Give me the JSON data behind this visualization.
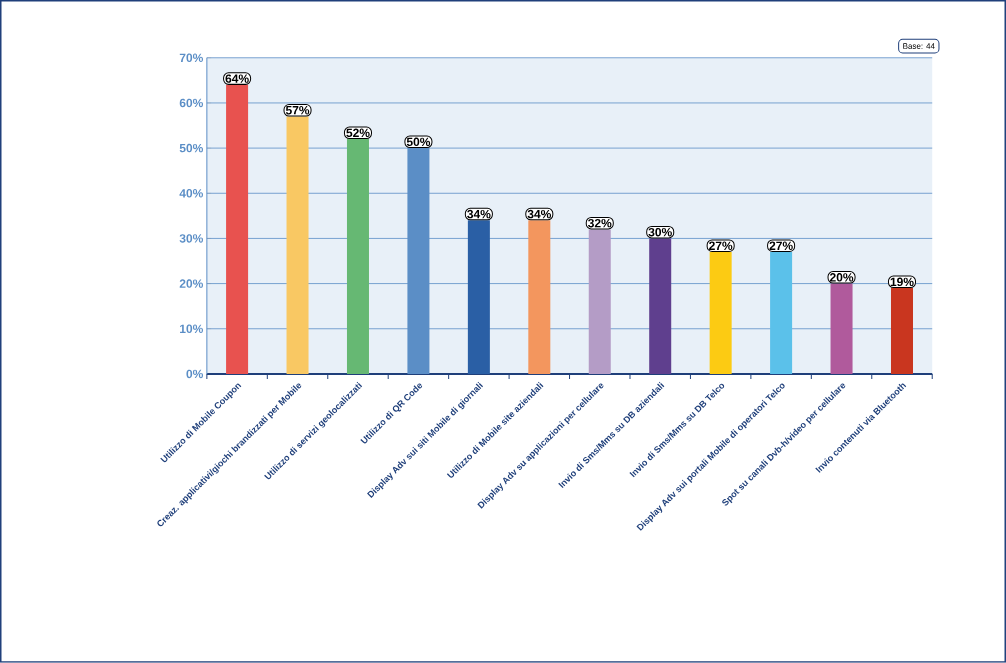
{
  "chart_data": {
    "type": "bar",
    "categories": [
      "Utilizzo di Mobile Coupon",
      "Creaz. applicativi/giochi  brandizzati per Mobile",
      "Utilizzo di servizi geolocalizzati",
      "Utilizzo di QR Code",
      "Display Adv sui siti Mobile di giornali",
      "Utilizzo di Mobile site aziendali",
      "Display Adv su applicazioni  per cellulare",
      "Invio di Sms/Mms su DB aziendali",
      "Invio di Sms/Mms su DB Telco",
      "Display Adv sui portali Mobile di operatori Telco",
      "Spot su canali Dvb-h/video  per cellulare",
      "Invio contenuti  via Bluetooth"
    ],
    "values": [
      64,
      57,
      52,
      50,
      34,
      34,
      32,
      30,
      27,
      27,
      20,
      19
    ],
    "colors": [
      "#e8524f",
      "#f9c863",
      "#66b873",
      "#5b8ec6",
      "#2a5fa5",
      "#f3965e",
      "#b49cc6",
      "#5f3f8e",
      "#fccb13",
      "#5bc1ea",
      "#b05a9c",
      "#c9361f"
    ],
    "value_labels": [
      "64%",
      "57%",
      "52%",
      "50%",
      "34%",
      "34%",
      "32%",
      "30%",
      "27%",
      "27%",
      "20%",
      "19%"
    ],
    "ylim": [
      0,
      70
    ],
    "yticks": [
      {
        "value": 0,
        "label": "0%"
      },
      {
        "value": 10,
        "label": "10%"
      },
      {
        "value": 20,
        "label": "20%"
      },
      {
        "value": 30,
        "label": "30%"
      },
      {
        "value": 40,
        "label": "40%"
      },
      {
        "value": 50,
        "label": "50%"
      },
      {
        "value": 60,
        "label": "60%"
      },
      {
        "value": 70,
        "label": "70%"
      }
    ],
    "grid": "y",
    "annotations": [
      "Base: 44"
    ]
  }
}
